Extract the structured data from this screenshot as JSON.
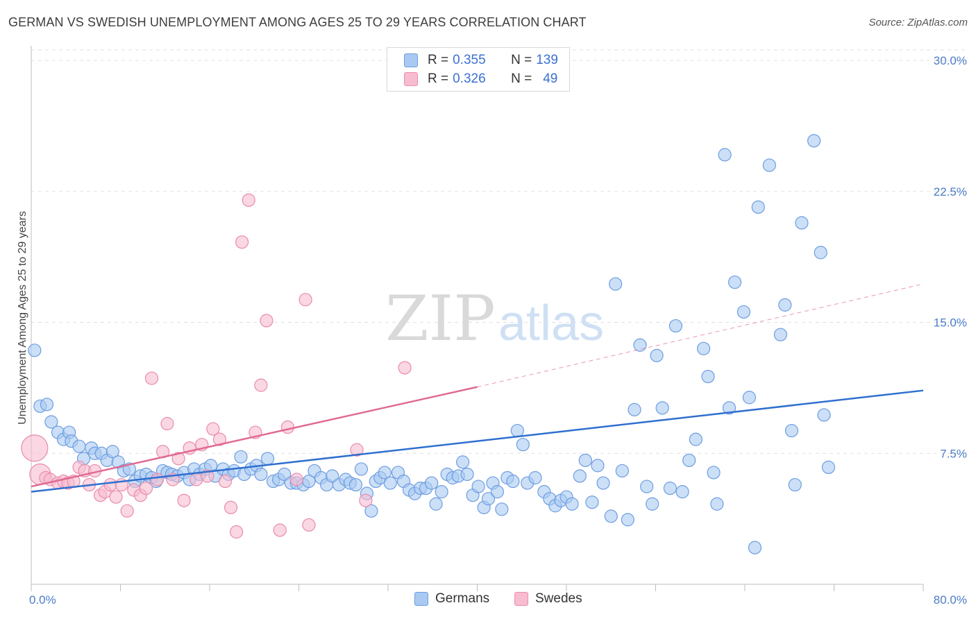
{
  "title": "GERMAN VS SWEDISH UNEMPLOYMENT AMONG AGES 25 TO 29 YEARS CORRELATION CHART",
  "source": "Source: ZipAtlas.com",
  "watermark": {
    "zip": "ZIP",
    "atlas": "atlas"
  },
  "legend": {
    "rows": [
      {
        "r_label": "R = ",
        "r_value": "0.355",
        "n_label": "N = ",
        "n_value": "139",
        "color": "#a9c9f2",
        "border": "#6d9de0"
      },
      {
        "r_label": "R = ",
        "r_value": "0.326",
        "n_label": "N = ",
        "n_value": "49",
        "color": "#f7bcd0",
        "border": "#e98bab"
      }
    ]
  },
  "bottom_legend": [
    {
      "label": "Germans",
      "color": "#a9c9f2",
      "border": "#6d9de0"
    },
    {
      "label": "Swedes",
      "color": "#f7bcd0",
      "border": "#e98bab"
    }
  ],
  "chart_data": {
    "type": "scatter",
    "title": "GERMAN VS SWEDISH UNEMPLOYMENT AMONG AGES 25 TO 29 YEARS CORRELATION CHART",
    "xlabel": "",
    "ylabel": "Unemployment Among Ages 25 to 29 years",
    "xlim": [
      0,
      80
    ],
    "ylim": [
      0,
      30.6
    ],
    "x_tick_labels": [
      {
        "value": 0,
        "label": "0.0%"
      },
      {
        "value": 80,
        "label": "80.0%"
      }
    ],
    "y_tick_labels": [
      {
        "value": 7.5,
        "label": "7.5%"
      },
      {
        "value": 15,
        "label": "15.0%"
      },
      {
        "value": 22.5,
        "label": "22.5%"
      },
      {
        "value": 30,
        "label": "30.0%"
      }
    ],
    "grid": "horizontal dashed",
    "legend_position": "top-center",
    "series": [
      {
        "name": "Germans",
        "color": "#a9c9f2",
        "edge": "#6d9de0",
        "trend": {
          "x": [
            0,
            80
          ],
          "y": [
            5.3,
            11.1
          ],
          "color": "#2f6fcf"
        },
        "points": [
          [
            0.3,
            13.4
          ],
          [
            0.8,
            10.2
          ],
          [
            1.4,
            10.3
          ],
          [
            1.8,
            9.3
          ],
          [
            2.4,
            8.7
          ],
          [
            2.9,
            8.3
          ],
          [
            3.4,
            8.7
          ],
          [
            3.6,
            8.2
          ],
          [
            4.3,
            7.9
          ],
          [
            4.7,
            7.2
          ],
          [
            5.4,
            7.8
          ],
          [
            5.7,
            7.5
          ],
          [
            6.3,
            7.5
          ],
          [
            6.8,
            7.1
          ],
          [
            7.3,
            7.6
          ],
          [
            7.8,
            7.0
          ],
          [
            8.3,
            6.5
          ],
          [
            8.8,
            6.6
          ],
          [
            9.3,
            5.9
          ],
          [
            9.8,
            6.2
          ],
          [
            10.3,
            6.3
          ],
          [
            10.8,
            6.1
          ],
          [
            11.2,
            5.9
          ],
          [
            11.8,
            6.5
          ],
          [
            12.2,
            6.4
          ],
          [
            12.6,
            6.3
          ],
          [
            13.1,
            6.2
          ],
          [
            13.7,
            6.4
          ],
          [
            14.2,
            6.0
          ],
          [
            14.6,
            6.6
          ],
          [
            15.1,
            6.3
          ],
          [
            15.6,
            6.6
          ],
          [
            16.1,
            6.8
          ],
          [
            16.5,
            6.2
          ],
          [
            17.2,
            6.6
          ],
          [
            17.7,
            6.3
          ],
          [
            18.2,
            6.5
          ],
          [
            18.8,
            7.3
          ],
          [
            19.1,
            6.3
          ],
          [
            19.7,
            6.6
          ],
          [
            20.2,
            6.8
          ],
          [
            20.6,
            6.3
          ],
          [
            21.2,
            7.2
          ],
          [
            21.7,
            5.9
          ],
          [
            22.2,
            6.0
          ],
          [
            22.7,
            6.3
          ],
          [
            23.3,
            5.8
          ],
          [
            23.8,
            5.8
          ],
          [
            24.4,
            5.7
          ],
          [
            24.9,
            5.9
          ],
          [
            25.4,
            6.5
          ],
          [
            26.0,
            6.1
          ],
          [
            26.5,
            5.7
          ],
          [
            27.0,
            6.2
          ],
          [
            27.6,
            5.7
          ],
          [
            28.2,
            6.0
          ],
          [
            28.6,
            5.8
          ],
          [
            29.1,
            5.7
          ],
          [
            29.6,
            6.6
          ],
          [
            30.1,
            5.2
          ],
          [
            30.5,
            4.2
          ],
          [
            30.9,
            5.9
          ],
          [
            31.3,
            6.1
          ],
          [
            31.7,
            6.4
          ],
          [
            32.2,
            5.8
          ],
          [
            32.9,
            6.4
          ],
          [
            33.4,
            5.9
          ],
          [
            33.9,
            5.4
          ],
          [
            34.4,
            5.2
          ],
          [
            34.9,
            5.5
          ],
          [
            35.4,
            5.5
          ],
          [
            35.9,
            5.8
          ],
          [
            36.3,
            4.6
          ],
          [
            36.8,
            5.3
          ],
          [
            37.3,
            6.3
          ],
          [
            37.8,
            6.1
          ],
          [
            38.3,
            6.2
          ],
          [
            38.7,
            7.0
          ],
          [
            39.1,
            6.3
          ],
          [
            39.6,
            5.1
          ],
          [
            40.1,
            5.6
          ],
          [
            40.6,
            4.4
          ],
          [
            41.0,
            4.9
          ],
          [
            41.4,
            5.8
          ],
          [
            41.8,
            5.3
          ],
          [
            42.2,
            4.3
          ],
          [
            42.7,
            6.1
          ],
          [
            43.2,
            5.9
          ],
          [
            43.6,
            8.8
          ],
          [
            44.1,
            8.0
          ],
          [
            44.5,
            5.8
          ],
          [
            45.2,
            6.1
          ],
          [
            46.0,
            5.3
          ],
          [
            46.5,
            4.9
          ],
          [
            47.0,
            4.5
          ],
          [
            47.5,
            4.8
          ],
          [
            48.0,
            5.0
          ],
          [
            48.5,
            4.6
          ],
          [
            49.2,
            6.2
          ],
          [
            49.7,
            7.1
          ],
          [
            50.3,
            4.7
          ],
          [
            50.8,
            6.8
          ],
          [
            51.3,
            5.8
          ],
          [
            52.0,
            3.9
          ],
          [
            52.4,
            17.2
          ],
          [
            53.0,
            6.5
          ],
          [
            53.5,
            3.7
          ],
          [
            54.1,
            10.0
          ],
          [
            54.6,
            13.7
          ],
          [
            55.2,
            5.6
          ],
          [
            55.7,
            4.6
          ],
          [
            56.1,
            13.1
          ],
          [
            56.6,
            10.1
          ],
          [
            57.3,
            5.5
          ],
          [
            57.8,
            14.8
          ],
          [
            58.4,
            5.3
          ],
          [
            59.0,
            7.1
          ],
          [
            59.6,
            8.3
          ],
          [
            60.3,
            13.5
          ],
          [
            60.7,
            11.9
          ],
          [
            61.2,
            6.4
          ],
          [
            61.5,
            4.6
          ],
          [
            62.2,
            24.6
          ],
          [
            62.6,
            10.1
          ],
          [
            63.1,
            17.3
          ],
          [
            63.9,
            15.6
          ],
          [
            64.4,
            10.7
          ],
          [
            64.9,
            2.1
          ],
          [
            65.2,
            21.6
          ],
          [
            66.2,
            24.0
          ],
          [
            67.2,
            14.3
          ],
          [
            67.6,
            16.0
          ],
          [
            68.2,
            8.8
          ],
          [
            68.5,
            5.7
          ],
          [
            69.1,
            20.7
          ],
          [
            70.2,
            25.4
          ],
          [
            70.8,
            19.0
          ],
          [
            71.1,
            9.7
          ],
          [
            71.5,
            6.7
          ]
        ]
      },
      {
        "name": "Swedes",
        "color": "#f7bcd0",
        "edge": "#e98bab",
        "trend": {
          "x": [
            0,
            40
          ],
          "y": [
            5.6,
            11.3
          ],
          "dashed_to": [
            80,
            17.2
          ],
          "color": "#e06a93"
        },
        "points": [
          [
            0.3,
            7.8
          ],
          [
            0.8,
            6.3
          ],
          [
            1.3,
            6.1
          ],
          [
            1.7,
            6.0
          ],
          [
            2.4,
            5.8
          ],
          [
            2.9,
            5.9
          ],
          [
            3.3,
            5.8
          ],
          [
            3.8,
            5.9
          ],
          [
            4.3,
            6.7
          ],
          [
            4.8,
            6.5
          ],
          [
            5.2,
            5.7
          ],
          [
            5.7,
            6.5
          ],
          [
            6.2,
            5.1
          ],
          [
            6.6,
            5.3
          ],
          [
            7.1,
            5.7
          ],
          [
            7.6,
            5.0
          ],
          [
            8.1,
            5.7
          ],
          [
            8.6,
            4.2
          ],
          [
            9.2,
            5.4
          ],
          [
            9.8,
            5.1
          ],
          [
            10.3,
            5.5
          ],
          [
            10.8,
            11.8
          ],
          [
            11.3,
            6.0
          ],
          [
            11.8,
            7.6
          ],
          [
            12.2,
            9.2
          ],
          [
            12.7,
            6.0
          ],
          [
            13.2,
            7.2
          ],
          [
            13.7,
            4.8
          ],
          [
            14.2,
            7.8
          ],
          [
            14.8,
            6.0
          ],
          [
            15.3,
            8.0
          ],
          [
            15.8,
            6.2
          ],
          [
            16.3,
            8.9
          ],
          [
            16.9,
            8.3
          ],
          [
            17.4,
            5.9
          ],
          [
            17.9,
            4.4
          ],
          [
            18.4,
            3.0
          ],
          [
            18.9,
            19.6
          ],
          [
            19.5,
            22.0
          ],
          [
            20.1,
            8.7
          ],
          [
            20.6,
            11.4
          ],
          [
            21.1,
            15.1
          ],
          [
            22.3,
            3.1
          ],
          [
            23.0,
            9.0
          ],
          [
            23.8,
            6.0
          ],
          [
            24.6,
            16.3
          ],
          [
            24.9,
            3.4
          ],
          [
            29.2,
            7.7
          ],
          [
            30.0,
            4.8
          ],
          [
            33.5,
            12.4
          ]
        ]
      }
    ]
  }
}
